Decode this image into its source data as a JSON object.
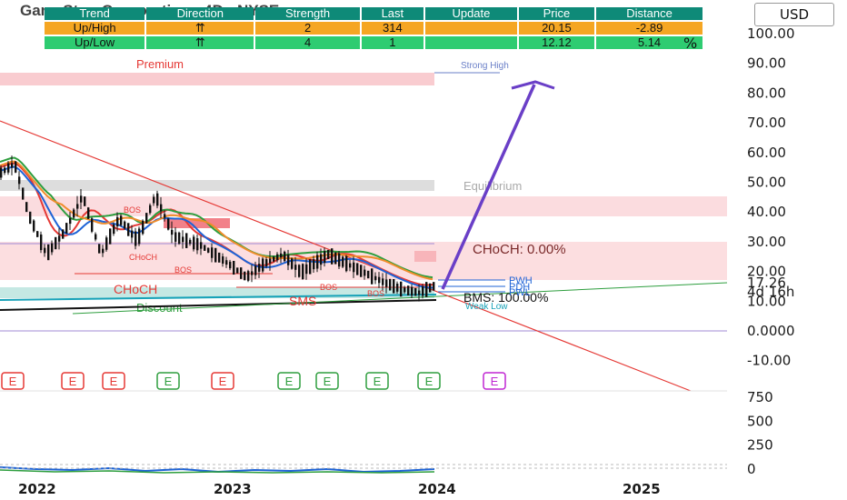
{
  "chart_title": "GameStop Corporation · 4D · NYSE",
  "currency_button": "USD",
  "info_table": {
    "headers": [
      "Trend",
      "Direction",
      "Strength",
      "Last",
      "Update",
      "Price",
      "Distance"
    ],
    "rows": [
      [
        "Up/High",
        "⇈",
        "2",
        "314",
        "",
        "20.15",
        "-2.89"
      ],
      [
        "Up/Low",
        "⇈",
        "4",
        "1",
        "",
        "12.12",
        "5.14"
      ]
    ],
    "trailing": "%"
  },
  "chart_data": {
    "type": "line",
    "symbol": "GameStop Corporation",
    "interval": "4D",
    "exchange": "NYSE",
    "y_axis": {
      "scale": "log",
      "ticks": [
        "100.00",
        "90.00",
        "80.00",
        "70.00",
        "60.00",
        "50.00",
        "40.00",
        "30.00",
        "20.00",
        "10.00",
        "0.0000",
        "-10.00"
      ]
    },
    "x_axis": {
      "ticks": [
        "2022",
        "2023",
        "2024",
        "2025"
      ]
    },
    "price_labels": {
      "last_price": "17.26",
      "countdown": "4d 16h"
    },
    "zones": {
      "premium": "Premium",
      "equilibrium": "Equilibrium",
      "discount": "Discount"
    },
    "levels": {
      "strong_high": "Strong High",
      "weak_low": "Weak Low"
    },
    "annotations": {
      "choch_main": "CHoCH",
      "choch_pct": "CHoCH: 0.00%",
      "bms_pct": "BMS: 100.00%",
      "sms": "SMS",
      "bos": "BOS",
      "pwh": "PWH",
      "pdh": "PDH",
      "pwl": "PWL"
    },
    "earnings_marker": "E",
    "volume_panel": {
      "ticks": [
        "750",
        "500",
        "250",
        "0"
      ]
    },
    "colors": {
      "candles": "#111111",
      "downtrend_line": "#e53935",
      "projection_arrow": "#6a3fc7",
      "premium_zone": "#f8c6cb",
      "discount_zone": "#bfe6e0",
      "ema_red": "#e53935",
      "ema_blue": "#1e63d6",
      "ema_green": "#2e9e3e",
      "ema_orange": "#ef8c2b"
    }
  }
}
